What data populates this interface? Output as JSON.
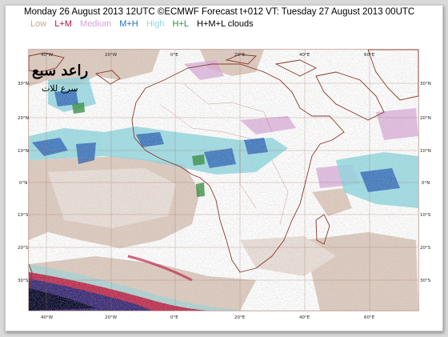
{
  "header": {
    "title": "Monday 26 August 2013 12UTC ©ECMWF Forecast t+012 VT: Tuesday 27 August 2013 00UTC"
  },
  "legend": [
    {
      "label": "Low",
      "color": "#c8a890"
    },
    {
      "label": "L+M",
      "color": "#c0103a"
    },
    {
      "label": "Medium",
      "color": "#d8a0d8"
    },
    {
      "label": "M+H",
      "color": "#1f6fb8"
    },
    {
      "label": "High",
      "color": "#8fd8e0"
    },
    {
      "label": "H+L",
      "color": "#2e8b3a"
    },
    {
      "label": "H+M+L clouds",
      "color": "#000000"
    }
  ],
  "axes": {
    "lon_labels": [
      "40°W",
      "20°W",
      "0°E",
      "20°E",
      "40°E",
      "60°E"
    ],
    "lat_labels": [
      "30°N",
      "20°N",
      "10°N",
      "0°N",
      "10°S",
      "20°S",
      "30°S"
    ]
  },
  "logo": {
    "text": "راعد سبع",
    "subtext": "سرع للات"
  }
}
